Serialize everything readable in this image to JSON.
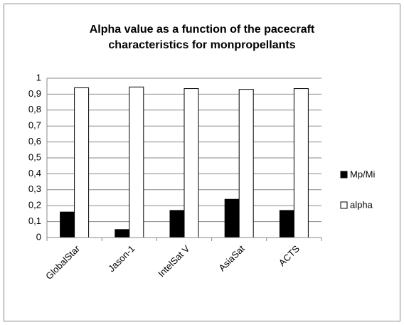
{
  "chart_data": {
    "type": "bar",
    "title": [
      "Alpha value as a function of the pacecraft",
      "characteristics for monpropellants"
    ],
    "categories": [
      "GlobalStar",
      "Jason-1",
      "IntelSat V",
      "AsiaSat",
      "ACTS"
    ],
    "series": [
      {
        "name": "Mp/Mi",
        "color": "#000000",
        "values": [
          0.16,
          0.05,
          0.17,
          0.24,
          0.17
        ]
      },
      {
        "name": "alpha",
        "color": "#ffffff",
        "values": [
          0.94,
          0.945,
          0.935,
          0.93,
          0.935
        ]
      }
    ],
    "ylim": [
      0,
      1
    ],
    "yticks": [
      0,
      {
        "value": 0.1,
        "label": "0,1"
      },
      {
        "value": 0.2,
        "label": "0,2"
      },
      {
        "value": 0.3,
        "label": "0,3"
      },
      {
        "value": 0.4,
        "label": "0,4"
      },
      {
        "value": 0.5,
        "label": "0,5"
      },
      {
        "value": 0.6,
        "label": "0,6"
      },
      {
        "value": 0.7,
        "label": "0,7"
      },
      {
        "value": 0.8,
        "label": "0,8"
      },
      {
        "value": 0.9,
        "label": "0,9"
      },
      1
    ],
    "grid": true,
    "legend": "right"
  }
}
